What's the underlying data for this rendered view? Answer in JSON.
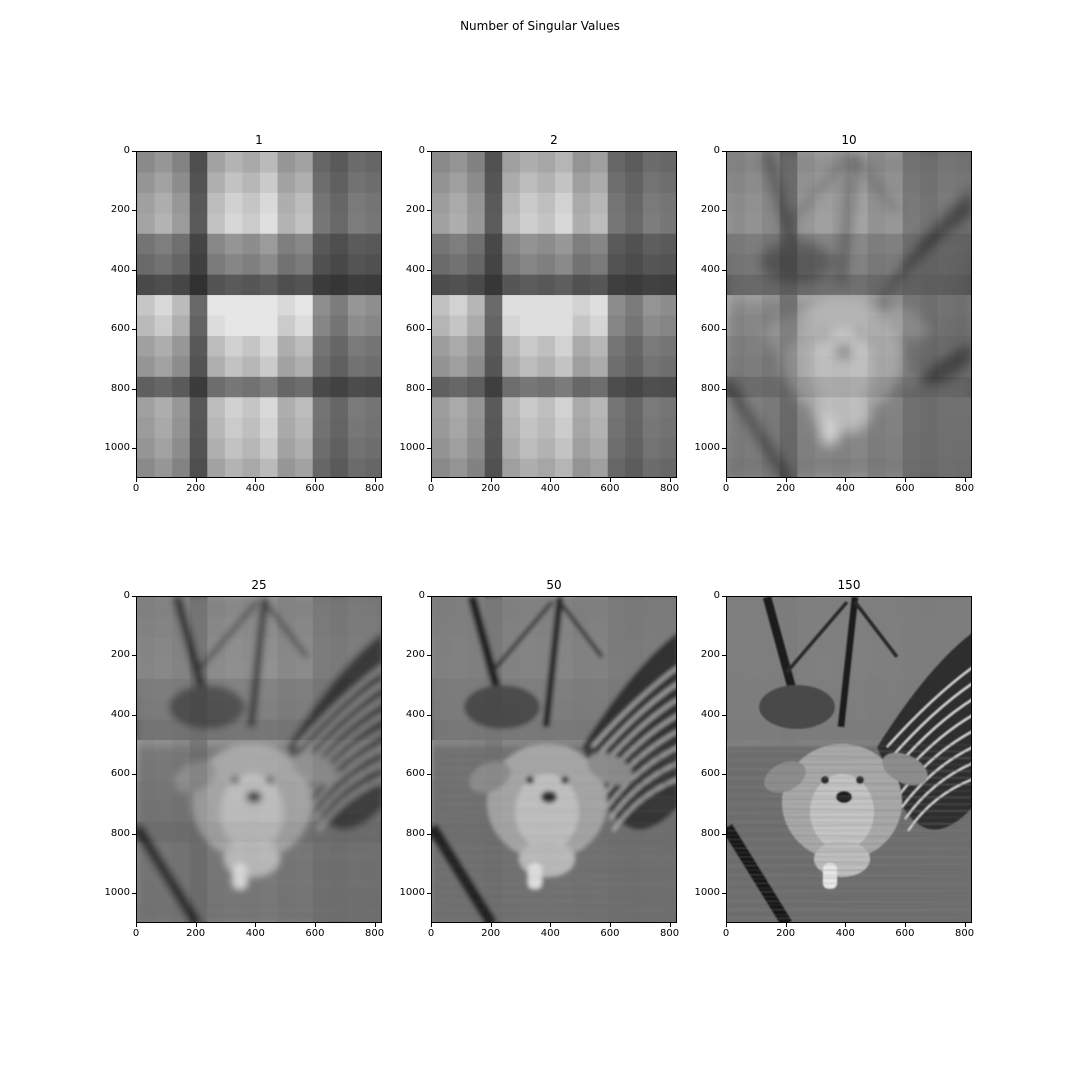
{
  "figure": {
    "title": "Number of Singular Values"
  },
  "chart_data": [
    {
      "type": "image",
      "title": "1",
      "image": "grayscale dog photo, rank-1 SVD approximation",
      "xlim": [
        0,
        825
      ],
      "ylim": [
        1100,
        0
      ],
      "xticks": [
        0,
        200,
        400,
        600,
        800
      ],
      "yticks": [
        0,
        200,
        400,
        600,
        800,
        1000
      ]
    },
    {
      "type": "image",
      "title": "2",
      "image": "grayscale dog photo, rank-2 SVD approximation",
      "xlim": [
        0,
        825
      ],
      "ylim": [
        1100,
        0
      ],
      "xticks": [
        0,
        200,
        400,
        600,
        800
      ],
      "yticks": [
        0,
        200,
        400,
        600,
        800,
        1000
      ]
    },
    {
      "type": "image",
      "title": "10",
      "image": "grayscale dog photo, rank-10 SVD approximation",
      "xlim": [
        0,
        825
      ],
      "ylim": [
        1100,
        0
      ],
      "xticks": [
        0,
        200,
        400,
        600,
        800
      ],
      "yticks": [
        0,
        200,
        400,
        600,
        800,
        1000
      ]
    },
    {
      "type": "image",
      "title": "25",
      "image": "grayscale dog photo, rank-25 SVD approximation",
      "xlim": [
        0,
        825
      ],
      "ylim": [
        1100,
        0
      ],
      "xticks": [
        0,
        200,
        400,
        600,
        800
      ],
      "yticks": [
        0,
        200,
        400,
        600,
        800,
        1000
      ]
    },
    {
      "type": "image",
      "title": "50",
      "image": "grayscale dog photo, rank-50 SVD approximation",
      "xlim": [
        0,
        825
      ],
      "ylim": [
        1100,
        0
      ],
      "xticks": [
        0,
        200,
        400,
        600,
        800
      ],
      "yticks": [
        0,
        200,
        400,
        600,
        800,
        1000
      ]
    },
    {
      "type": "image",
      "title": "150",
      "image": "grayscale dog photo, rank-150 SVD approximation",
      "xlim": [
        0,
        825
      ],
      "ylim": [
        1100,
        0
      ],
      "xticks": [
        0,
        200,
        400,
        600,
        800
      ],
      "yticks": [
        0,
        200,
        400,
        600,
        800,
        1000
      ]
    }
  ]
}
